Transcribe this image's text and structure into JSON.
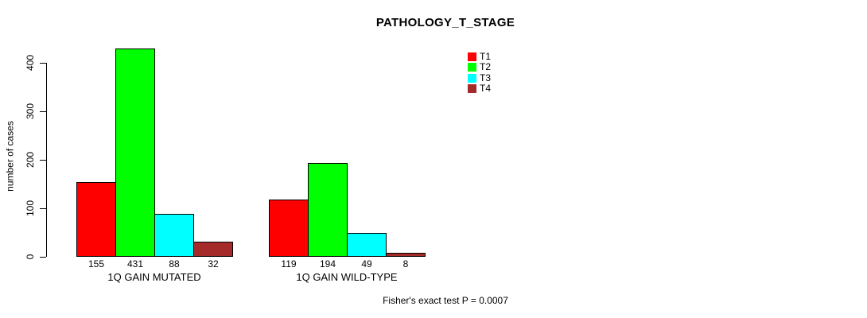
{
  "chart_data": {
    "type": "bar",
    "title": "PATHOLOGY_T_STAGE",
    "ylabel": "number of cases",
    "xlabel": "",
    "ylim": [
      0,
      400
    ],
    "yticks": [
      0,
      100,
      200,
      300,
      400
    ],
    "grid": false,
    "bar_value_labels": true,
    "categories": [
      "1Q GAIN MUTATED",
      "1Q GAIN WILD-TYPE"
    ],
    "series": [
      {
        "name": "T1",
        "color": "#FF0000",
        "values": [
          155,
          119
        ]
      },
      {
        "name": "T2",
        "color": "#00FF00",
        "values": [
          431,
          194
        ]
      },
      {
        "name": "T3",
        "color": "#00FFFF",
        "values": [
          88,
          49
        ]
      },
      {
        "name": "T4",
        "color": "#A52A2A",
        "values": [
          32,
          8
        ]
      }
    ],
    "legend": {
      "position": "top-right",
      "entries": [
        "T1",
        "T2",
        "T3",
        "T4"
      ]
    }
  },
  "footer": {
    "stat_note": "Fisher's exact test P = 0.0007"
  }
}
